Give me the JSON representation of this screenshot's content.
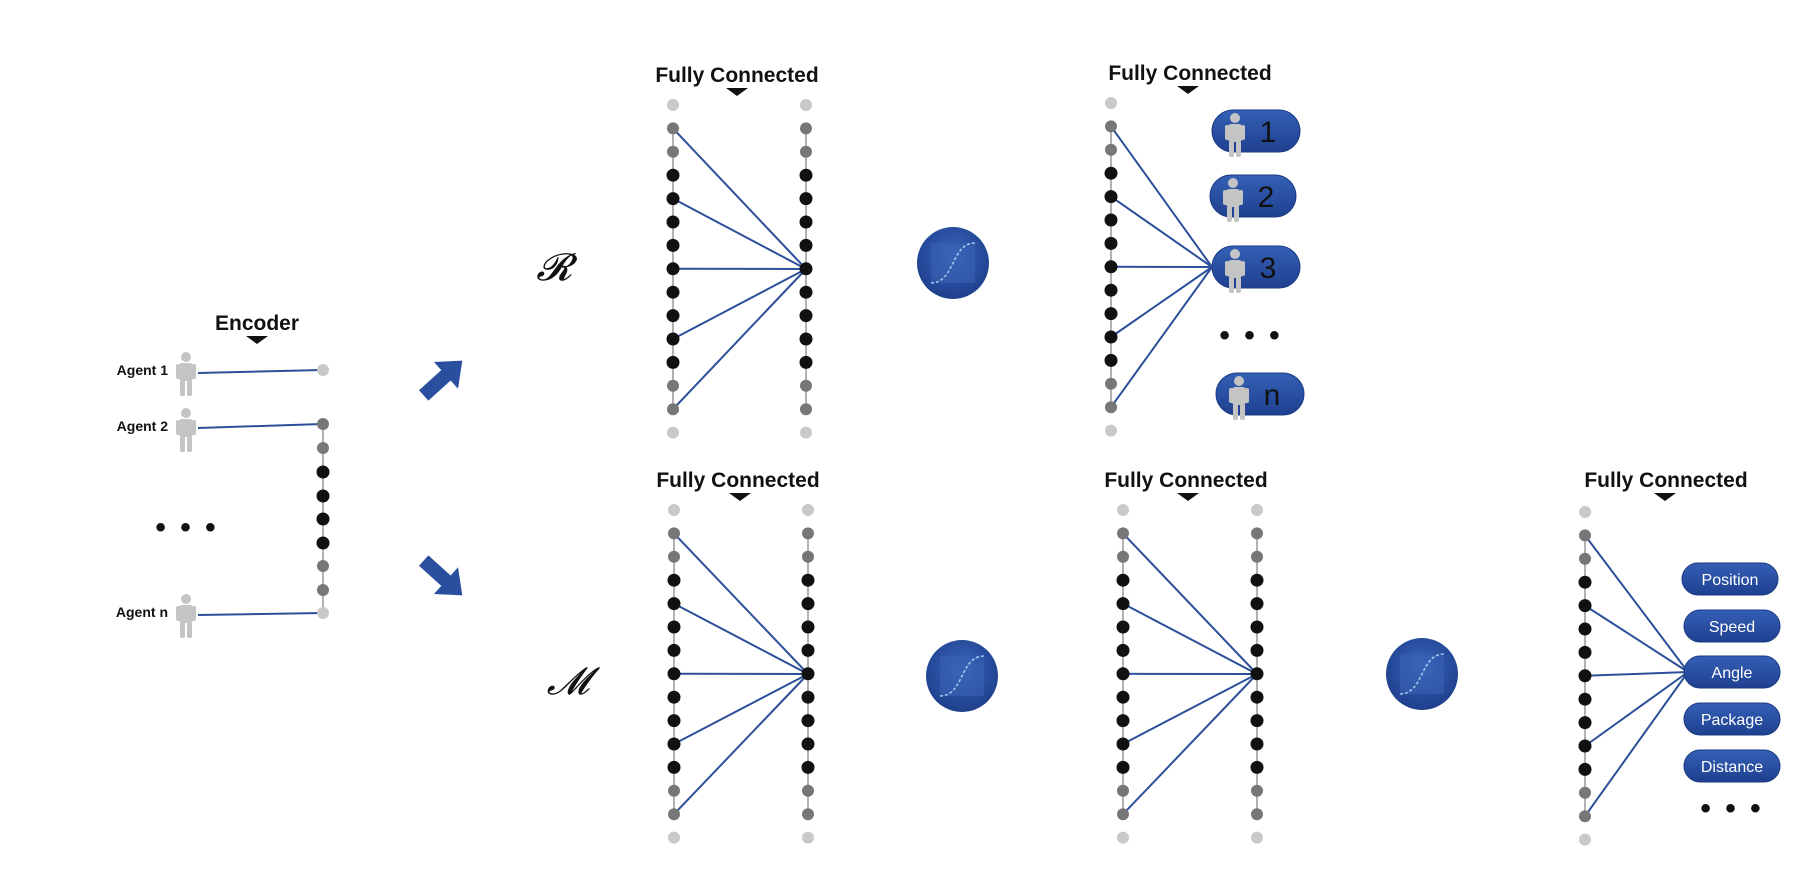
{
  "encoder": {
    "title": "Encoder",
    "agents": [
      "Agent 1",
      "Agent 2",
      "Agent n"
    ],
    "ellipsis": "• • •"
  },
  "branches": {
    "r_symbol": "𝓡",
    "m_symbol": "𝓜"
  },
  "layers": {
    "fc_top_1": "Fully Connected",
    "fc_top_2": "Fully Connected",
    "fc_bottom_1": "Fully Connected",
    "fc_bottom_2": "Fully Connected",
    "fc_bottom_3": "Fully Connected"
  },
  "agent_outputs": {
    "labels": [
      "1",
      "2",
      "3",
      "n"
    ],
    "ellipsis": "• • •"
  },
  "attribute_outputs": {
    "labels": [
      "Position",
      "Speed",
      "Angle",
      "Package",
      "Distance"
    ],
    "ellipsis": "• • •"
  },
  "colors": {
    "accent_blue": "#2a4f9e",
    "connection_line": "#2c4f9a",
    "node_black": "#111111",
    "node_dark_gray": "#777777",
    "node_light_gray": "#c9c9c9",
    "person_icon": "#c4c4c4"
  },
  "icons": {
    "agent": "person-icon",
    "activation": "sigmoid-icon",
    "arrow": "arrow-icon",
    "pointer": "chevron-down-icon"
  }
}
